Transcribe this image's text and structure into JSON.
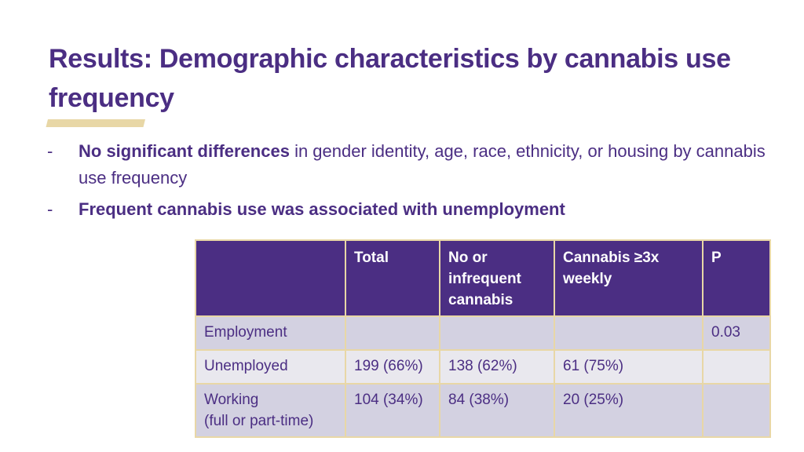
{
  "slide": {
    "title": "Results: Demographic characteristics by cannabis use frequency",
    "bullets": [
      {
        "marker": "-",
        "bold": "No significant differences",
        "rest": " in gender identity, age, race, ethnicity, or housing by cannabis use frequency"
      },
      {
        "marker": "-",
        "bold": "Frequent cannabis use was associated with unemployment",
        "rest": ""
      }
    ],
    "colors": {
      "primary": "#4b2e83",
      "accent_gold": "#e8d7a6",
      "row_dark": "#d3d1e1",
      "row_light": "#e9e8ee"
    }
  },
  "table": {
    "headers": [
      "",
      "Total",
      "No or infrequent cannabis",
      "Cannabis ≥3x weekly",
      "P"
    ],
    "rows": [
      [
        "Employment",
        "",
        "",
        "",
        "0.03"
      ],
      [
        "Unemployed",
        "199 (66%)",
        "138 (62%)",
        "61 (75%)",
        ""
      ],
      [
        "Working\n(full or part-time)",
        "104 (34%)",
        "84 (38%)",
        "20 (25%)",
        ""
      ]
    ]
  }
}
